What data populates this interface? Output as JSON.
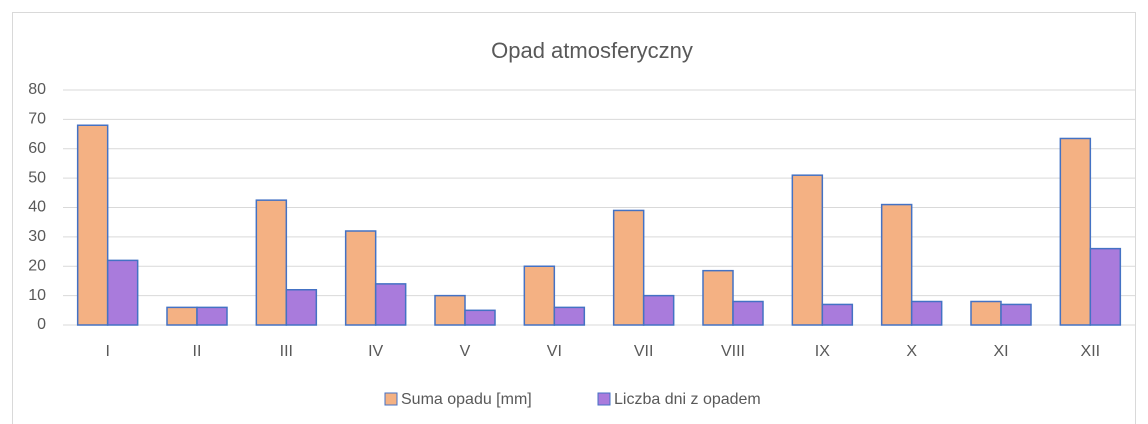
{
  "chart_data": {
    "type": "bar",
    "title": "Opad atmosferyczny",
    "categories": [
      "I",
      "II",
      "III",
      "IV",
      "V",
      "VI",
      "VII",
      "VIII",
      "IX",
      "X",
      "XI",
      "XII"
    ],
    "series": [
      {
        "name": "Suma opadu [mm]",
        "color": "#f4b183",
        "values": [
          68,
          6,
          42.5,
          32,
          10,
          20,
          39,
          18.5,
          51,
          41,
          8,
          63.5
        ]
      },
      {
        "name": "Liczba dni z opadem",
        "color": "#a97bdc",
        "values": [
          22,
          6,
          12,
          14,
          5,
          6,
          10,
          8,
          7,
          8,
          7,
          26
        ]
      }
    ],
    "ylim": [
      0,
      80
    ],
    "yticks": [
      0,
      10,
      20,
      30,
      40,
      50,
      60,
      70,
      80
    ],
    "grid": true,
    "legend": "bottom"
  }
}
